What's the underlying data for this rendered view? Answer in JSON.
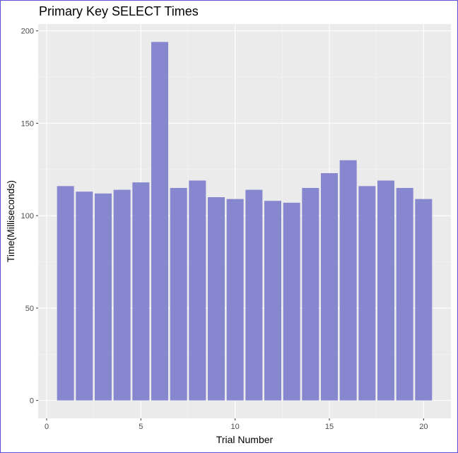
{
  "chart_data": {
    "type": "bar",
    "title": "Primary Key SELECT Times",
    "xlabel": "Trial Number",
    "ylabel": "Time(Milliseconds)",
    "x": [
      1,
      2,
      3,
      4,
      5,
      6,
      7,
      8,
      9,
      10,
      11,
      12,
      13,
      14,
      15,
      16,
      17,
      18,
      19,
      20
    ],
    "values": [
      116,
      113,
      112,
      114,
      118,
      194,
      115,
      119,
      110,
      109,
      114,
      108,
      107,
      115,
      123,
      130,
      116,
      119,
      115,
      109
    ],
    "xlim": [
      -0.45,
      21.45
    ],
    "ylim": [
      -9.7,
      203.7
    ],
    "xticks": [
      0,
      5,
      10,
      15,
      20
    ],
    "yticks": [
      0,
      50,
      100,
      150,
      200
    ],
    "grid": true,
    "legend": "none",
    "colors": {
      "bar": "#8787cf",
      "panel": "#ebebeb",
      "grid_major": "#ffffff",
      "grid_minor": "#f5f5f5",
      "tick": "#333333",
      "frame": "#5a4fd6"
    }
  }
}
